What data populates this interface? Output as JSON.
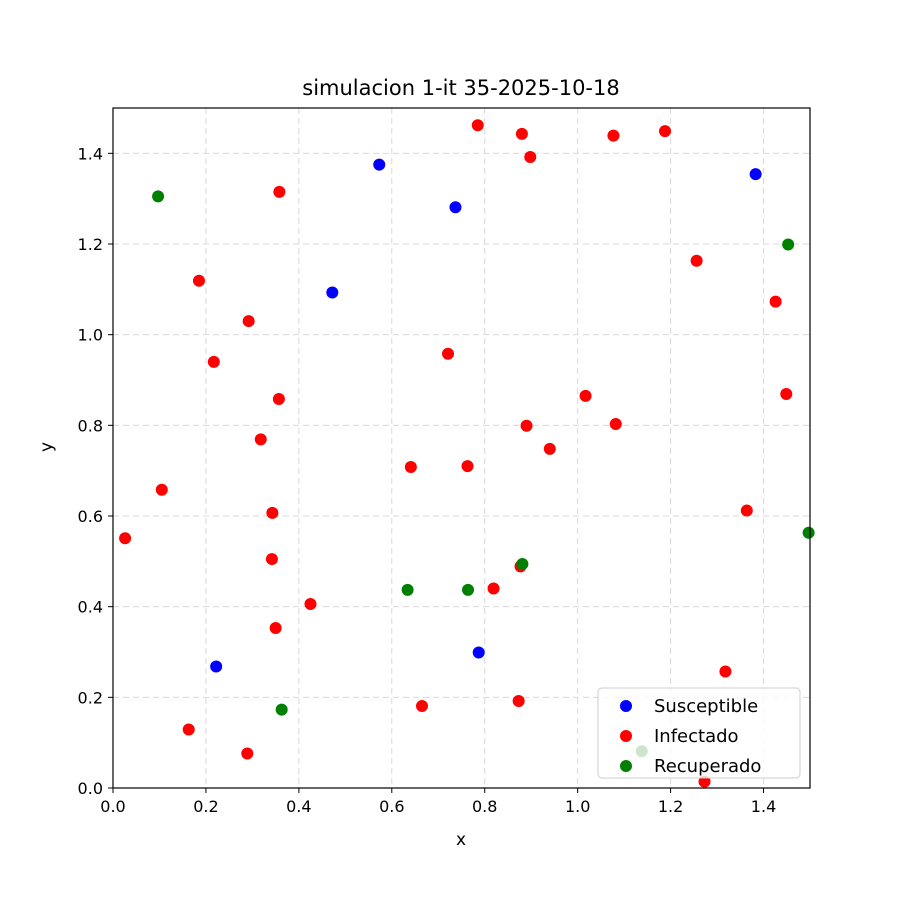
{
  "chart_data": {
    "type": "scatter",
    "title": "simulacion 1-it 35-2025-10-18",
    "xlabel": "x",
    "ylabel": "y",
    "xlim": [
      0.0,
      1.5
    ],
    "ylim": [
      0.0,
      1.5
    ],
    "x_ticks": [
      0.0,
      0.2,
      0.4,
      0.6,
      0.8,
      1.0,
      1.2,
      1.4
    ],
    "y_ticks": [
      0.0,
      0.2,
      0.4,
      0.6,
      0.8,
      1.0,
      1.2,
      1.4
    ],
    "x_tick_labels": [
      "0.0",
      "0.2",
      "0.4",
      "0.6",
      "0.8",
      "1.0",
      "1.2",
      "1.4"
    ],
    "y_tick_labels": [
      "0.0",
      "0.2",
      "0.4",
      "0.6",
      "0.8",
      "1.0",
      "1.2",
      "1.4"
    ],
    "grid": true,
    "legend_position": "lower-right",
    "series": [
      {
        "name": "Susceptible",
        "color": "#0000ff",
        "points": [
          [
            0.573,
            1.375
          ],
          [
            0.737,
            1.281
          ],
          [
            0.472,
            1.093
          ],
          [
            1.383,
            1.354
          ],
          [
            0.222,
            0.268
          ],
          [
            0.787,
            0.299
          ]
        ]
      },
      {
        "name": "Infectado",
        "color": "#ff0000",
        "points": [
          [
            0.785,
            1.462
          ],
          [
            0.88,
            1.443
          ],
          [
            0.898,
            1.392
          ],
          [
            1.077,
            1.439
          ],
          [
            1.188,
            1.449
          ],
          [
            0.358,
            1.315
          ],
          [
            1.256,
            1.163
          ],
          [
            1.426,
            1.073
          ],
          [
            0.185,
            1.119
          ],
          [
            0.292,
            1.03
          ],
          [
            0.217,
            0.94
          ],
          [
            0.721,
            0.958
          ],
          [
            0.357,
            0.858
          ],
          [
            1.017,
            0.865
          ],
          [
            1.449,
            0.869
          ],
          [
            0.318,
            0.769
          ],
          [
            0.89,
            0.799
          ],
          [
            1.082,
            0.803
          ],
          [
            0.94,
            0.748
          ],
          [
            0.641,
            0.708
          ],
          [
            0.763,
            0.71
          ],
          [
            0.105,
            0.658
          ],
          [
            0.343,
            0.607
          ],
          [
            1.364,
            0.612
          ],
          [
            0.026,
            0.551
          ],
          [
            0.342,
            0.505
          ],
          [
            0.877,
            0.489
          ],
          [
            0.819,
            0.44
          ],
          [
            0.425,
            0.406
          ],
          [
            0.35,
            0.353
          ],
          [
            1.318,
            0.257
          ],
          [
            0.665,
            0.181
          ],
          [
            0.873,
            0.192
          ],
          [
            0.163,
            0.129
          ],
          [
            0.289,
            0.076
          ],
          [
            1.273,
            0.014
          ]
        ]
      },
      {
        "name": "Recuperado",
        "color": "#008000",
        "points": [
          [
            0.097,
            1.305
          ],
          [
            1.453,
            1.199
          ],
          [
            1.497,
            0.563
          ],
          [
            0.881,
            0.494
          ],
          [
            0.634,
            0.437
          ],
          [
            0.764,
            0.437
          ],
          [
            0.363,
            0.173
          ],
          [
            1.138,
            0.081
          ]
        ]
      }
    ]
  }
}
